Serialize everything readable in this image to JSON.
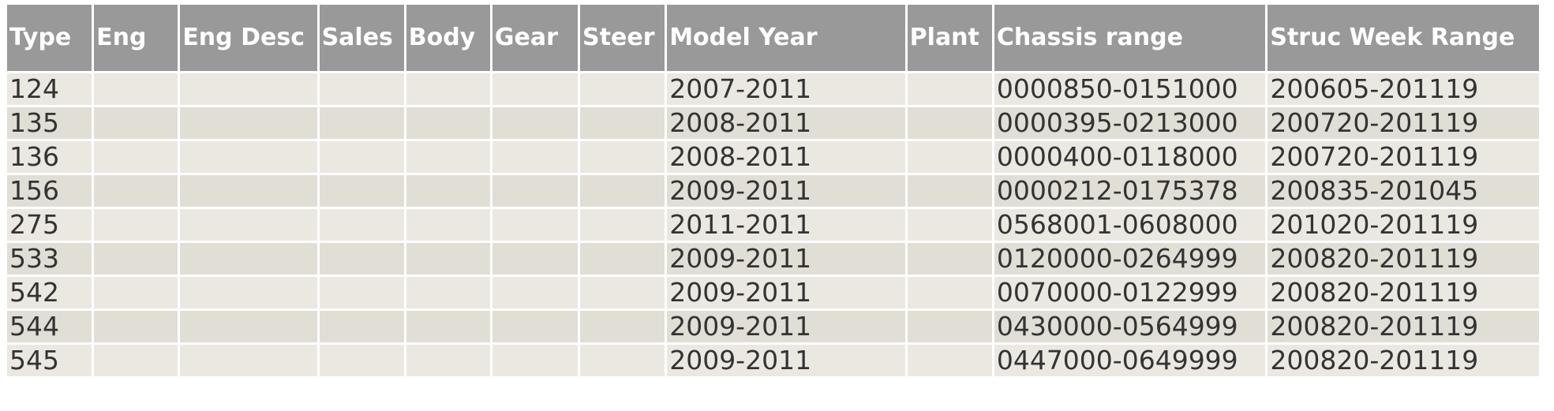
{
  "table": {
    "columns": [
      "Type",
      "Eng",
      "Eng Desc",
      "Sales",
      "Body",
      "Gear",
      "Steer",
      "Model Year",
      "Plant",
      "Chassis range",
      "Struc Week Range"
    ],
    "rows": [
      [
        "124",
        null,
        null,
        null,
        null,
        null,
        null,
        "2007-2011",
        null,
        "0000850-0151000",
        "200605-201119"
      ],
      [
        "135",
        null,
        null,
        null,
        null,
        null,
        null,
        "2008-2011",
        null,
        "0000395-0213000",
        "200720-201119"
      ],
      [
        "136",
        null,
        null,
        null,
        null,
        null,
        null,
        "2008-2011",
        null,
        "0000400-0118000",
        "200720-201119"
      ],
      [
        "156",
        null,
        null,
        null,
        null,
        null,
        null,
        "2009-2011",
        null,
        "0000212-0175378",
        "200835-201045"
      ],
      [
        "275",
        null,
        null,
        null,
        null,
        null,
        null,
        "2011-2011",
        null,
        "0568001-0608000",
        "201020-201119"
      ],
      [
        "533",
        null,
        null,
        null,
        null,
        null,
        null,
        "2009-2011",
        null,
        "0120000-0264999",
        "200820-201119"
      ],
      [
        "542",
        null,
        null,
        null,
        null,
        null,
        null,
        "2009-2011",
        null,
        "0070000-0122999",
        "200820-201119"
      ],
      [
        "544",
        null,
        null,
        null,
        null,
        null,
        null,
        "2009-2011",
        null,
        "0430000-0564999",
        "200820-201119"
      ],
      [
        "545",
        null,
        null,
        null,
        null,
        null,
        null,
        "2009-2011",
        null,
        "0447000-0649999",
        "200820-201119"
      ]
    ]
  }
}
